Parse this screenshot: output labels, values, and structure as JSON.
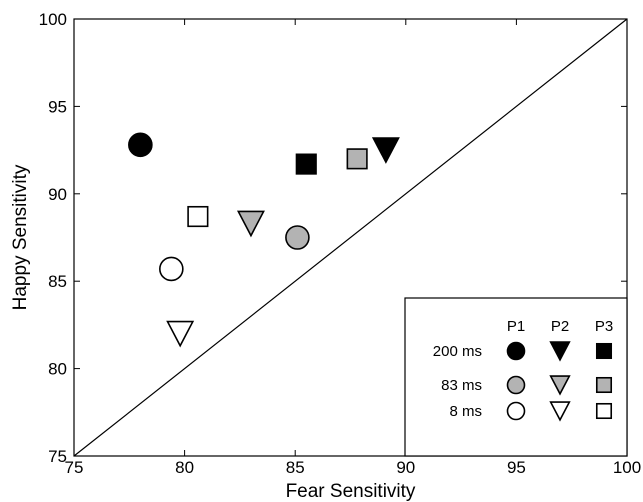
{
  "chart_data": {
    "type": "scatter",
    "xlabel": "Fear Sensitivity",
    "ylabel": "Happy Sensitivity",
    "xlim": [
      75,
      100
    ],
    "ylim": [
      75,
      100
    ],
    "x_ticks": [
      "75",
      "80",
      "85",
      "90",
      "95",
      "100"
    ],
    "y_ticks": [
      "75",
      "80",
      "85",
      "90",
      "95",
      "100"
    ],
    "grid": false,
    "reference_line": "identity diagonal (y = x)",
    "legend_position": "bottom-right",
    "legend": {
      "participants": [
        "P1",
        "P2",
        "P3"
      ],
      "conditions": [
        "200 ms",
        "83 ms",
        "8 ms"
      ]
    },
    "markers": {
      "P1": "circle",
      "P2": "triangle-down",
      "P3": "square"
    },
    "fills": {
      "200 ms": "#000000",
      "83 ms": "#b3b3b3",
      "8 ms": "#ffffff"
    },
    "points": [
      {
        "participant": "P1",
        "condition": "200 ms",
        "x": 78.0,
        "y": 92.8
      },
      {
        "participant": "P1",
        "condition": "83 ms",
        "x": 85.1,
        "y": 87.5
      },
      {
        "participant": "P1",
        "condition": "8 ms",
        "x": 79.4,
        "y": 85.7
      },
      {
        "participant": "P2",
        "condition": "200 ms",
        "x": 89.1,
        "y": 92.5
      },
      {
        "participant": "P2",
        "condition": "83 ms",
        "x": 83.0,
        "y": 88.3
      },
      {
        "participant": "P2",
        "condition": "8 ms",
        "x": 79.8,
        "y": 82.0
      },
      {
        "participant": "P3",
        "condition": "200 ms",
        "x": 85.5,
        "y": 91.7
      },
      {
        "participant": "P3",
        "condition": "83 ms",
        "x": 87.8,
        "y": 92.0
      },
      {
        "participant": "P3",
        "condition": "8 ms",
        "x": 80.6,
        "y": 88.7
      }
    ]
  }
}
